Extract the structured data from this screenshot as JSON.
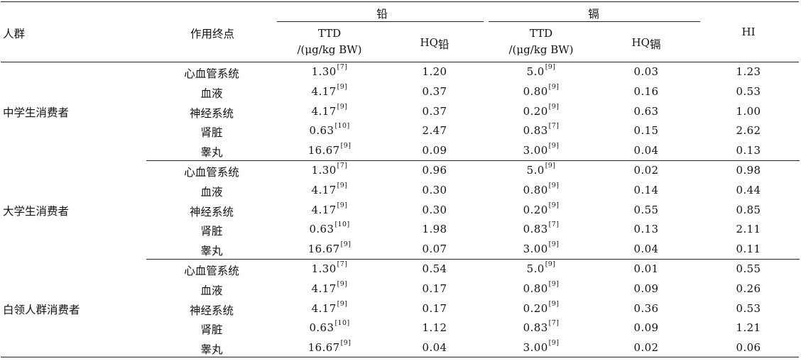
{
  "header": {
    "group_col": "人群",
    "endpoint_col": "作用终点",
    "lead_group": "铅",
    "cadmium_group": "镉",
    "ttd_label": "TTD",
    "ttd_unit": "/(μg/kg BW)",
    "hq_label": "HQ",
    "hq_lead_sub": "铅",
    "hq_cd_sub": "镉",
    "hi_label": "HI"
  },
  "groups": [
    {
      "name": "中学生消费者",
      "rows": [
        {
          "endpoint": "心血管系统",
          "ttd_pb": "1.30",
          "ref_pb": "[7]",
          "hq_pb": "1.20",
          "ttd_cd": "5.0",
          "ref_cd": "[9]",
          "hq_cd": "0.03",
          "hi": "1.23"
        },
        {
          "endpoint": "血液",
          "ttd_pb": "4.17",
          "ref_pb": "[9]",
          "hq_pb": "0.37",
          "ttd_cd": "0.80",
          "ref_cd": "[9]",
          "hq_cd": "0.16",
          "hi": "0.53"
        },
        {
          "endpoint": "神经系统",
          "ttd_pb": "4.17",
          "ref_pb": "[9]",
          "hq_pb": "0.37",
          "ttd_cd": "0.20",
          "ref_cd": "[9]",
          "hq_cd": "0.63",
          "hi": "1.00"
        },
        {
          "endpoint": "肾脏",
          "ttd_pb": "0.63",
          "ref_pb": "[10]",
          "hq_pb": "2.47",
          "ttd_cd": "0.83",
          "ref_cd": "[7]",
          "hq_cd": "0.15",
          "hi": "2.62"
        },
        {
          "endpoint": "睾丸",
          "ttd_pb": "16.67",
          "ref_pb": "[9]",
          "hq_pb": "0.09",
          "ttd_cd": "3.00",
          "ref_cd": "[9]",
          "hq_cd": "0.04",
          "hi": "0.13"
        }
      ]
    },
    {
      "name": "大学生消费者",
      "rows": [
        {
          "endpoint": "心血管系统",
          "ttd_pb": "1.30",
          "ref_pb": "[7]",
          "hq_pb": "0.96",
          "ttd_cd": "5.0",
          "ref_cd": "[9]",
          "hq_cd": "0.02",
          "hi": "0.98"
        },
        {
          "endpoint": "血液",
          "ttd_pb": "4.17",
          "ref_pb": "[9]",
          "hq_pb": "0.30",
          "ttd_cd": "0.80",
          "ref_cd": "[9]",
          "hq_cd": "0.14",
          "hi": "0.44"
        },
        {
          "endpoint": "神经系统",
          "ttd_pb": "4.17",
          "ref_pb": "[9]",
          "hq_pb": "0.30",
          "ttd_cd": "0.20",
          "ref_cd": "[9]",
          "hq_cd": "0.55",
          "hi": "0.85"
        },
        {
          "endpoint": "肾脏",
          "ttd_pb": "0.63",
          "ref_pb": "[10]",
          "hq_pb": "1.98",
          "ttd_cd": "0.83",
          "ref_cd": "[7]",
          "hq_cd": "0.13",
          "hi": "2.11"
        },
        {
          "endpoint": "睾丸",
          "ttd_pb": "16.67",
          "ref_pb": "[9]",
          "hq_pb": "0.07",
          "ttd_cd": "3.00",
          "ref_cd": "[9]",
          "hq_cd": "0.04",
          "hi": "0.11"
        }
      ]
    },
    {
      "name": "白领人群消费者",
      "rows": [
        {
          "endpoint": "心血管系统",
          "ttd_pb": "1.30",
          "ref_pb": "[7]",
          "hq_pb": "0.54",
          "ttd_cd": "5.0",
          "ref_cd": "[9]",
          "hq_cd": "0.01",
          "hi": "0.55"
        },
        {
          "endpoint": "血液",
          "ttd_pb": "4.17",
          "ref_pb": "[9]",
          "hq_pb": "0.17",
          "ttd_cd": "0.80",
          "ref_cd": "[9]",
          "hq_cd": "0.09",
          "hi": "0.26"
        },
        {
          "endpoint": "神经系统",
          "ttd_pb": "4.17",
          "ref_pb": "[9]",
          "hq_pb": "0.17",
          "ttd_cd": "0.20",
          "ref_cd": "[9]",
          "hq_cd": "0.36",
          "hi": "0.53"
        },
        {
          "endpoint": "肾脏",
          "ttd_pb": "0.63",
          "ref_pb": "[10]",
          "hq_pb": "1.12",
          "ttd_cd": "0.83",
          "ref_cd": "[7]",
          "hq_cd": "0.09",
          "hi": "1.21"
        },
        {
          "endpoint": "睾丸",
          "ttd_pb": "16.67",
          "ref_pb": "[9]",
          "hq_pb": "0.04",
          "ttd_cd": "3.00",
          "ref_cd": "[9]",
          "hq_cd": "0.02",
          "hi": "0.06"
        }
      ]
    }
  ]
}
